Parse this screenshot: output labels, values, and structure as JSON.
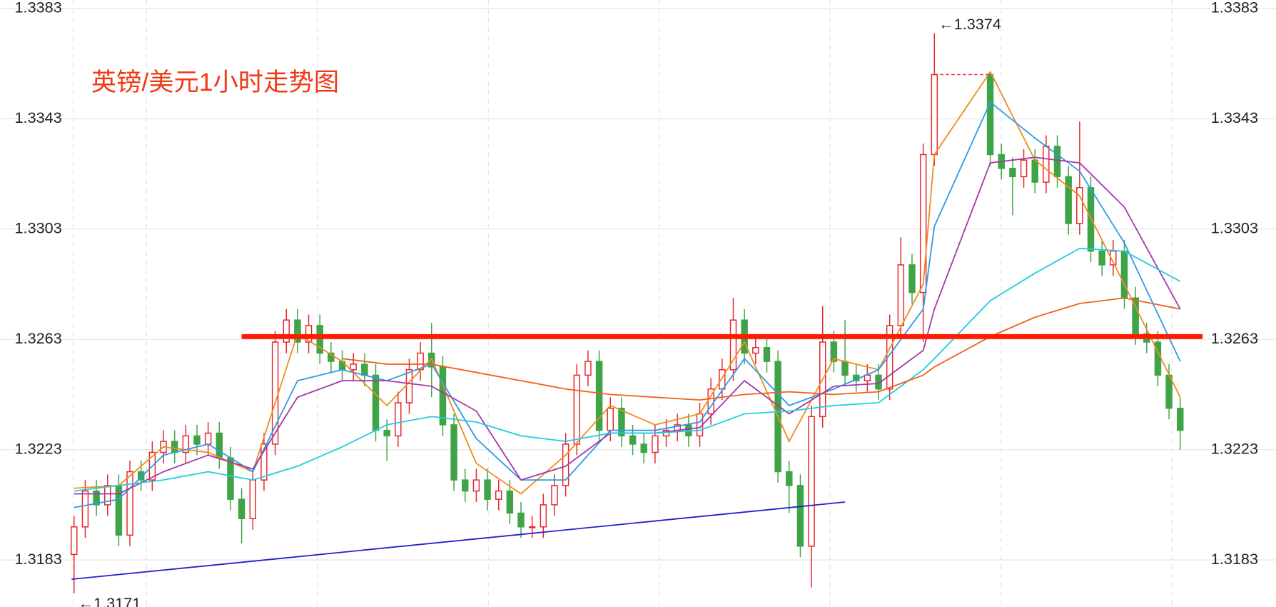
{
  "chart_data": {
    "type": "candlestick",
    "title": "英镑/美元1小时走势图",
    "up_color": "#e8262b",
    "down_color": "#3fa447",
    "ylim": [
      1.3166,
      1.3386
    ],
    "yticks": [
      1.3183,
      1.3223,
      1.3263,
      1.3303,
      1.3343,
      1.3383
    ],
    "grid": true,
    "open": [
      1.3185,
      1.3195,
      1.3208,
      1.3203,
      1.321,
      1.3192,
      1.3215,
      1.3212,
      1.3222,
      1.3226,
      1.3222,
      1.3228,
      1.3225,
      1.3229,
      1.322,
      1.3205,
      1.3198,
      1.3212,
      1.3225,
      1.3262,
      1.327,
      1.3262,
      1.3268,
      1.3258,
      1.3255,
      1.3252,
      1.3254,
      1.325,
      1.323,
      1.3228,
      1.324,
      1.3252,
      1.3258,
      1.3253,
      1.3232,
      1.3212,
      1.3208,
      1.3212,
      1.3205,
      1.3208,
      1.32,
      1.3195,
      1.3195,
      1.3203,
      1.321,
      1.3225,
      1.325,
      1.3255,
      1.323,
      1.3238,
      1.3228,
      1.3225,
      1.3222,
      1.3228,
      1.323,
      1.3232,
      1.3228,
      1.3236,
      1.3245,
      1.3252,
      1.327,
      1.3258,
      1.326,
      1.3255,
      1.3215,
      1.321,
      1.3188,
      1.3235,
      1.3262,
      1.3255,
      1.325,
      1.3248,
      1.325,
      1.3245,
      1.3268,
      1.329,
      1.328,
      1.333,
      null,
      null,
      null,
      null,
      1.3359,
      1.333,
      1.3325,
      1.3322,
      1.3328,
      1.332,
      1.3333,
      1.3322,
      1.3305,
      1.3318,
      1.3295,
      1.329,
      1.3295,
      1.3278,
      1.3265,
      1.3262,
      1.325,
      1.3238
    ],
    "high": [
      1.3199,
      1.3212,
      1.3212,
      1.3214,
      1.3214,
      1.3219,
      1.3219,
      1.3226,
      1.323,
      1.323,
      1.3232,
      1.3232,
      1.3233,
      1.3233,
      1.3224,
      1.3209,
      1.3216,
      1.3229,
      1.3266,
      1.3274,
      1.3274,
      1.3272,
      1.3272,
      1.3262,
      1.3259,
      1.3258,
      1.3258,
      1.3254,
      1.3234,
      1.3244,
      1.3256,
      1.3262,
      1.3269,
      1.3257,
      1.3236,
      1.3216,
      1.3216,
      1.3216,
      1.3212,
      1.3212,
      1.3204,
      1.3199,
      1.3207,
      1.3214,
      1.3229,
      1.3254,
      1.3259,
      1.3259,
      1.3242,
      1.3242,
      1.3232,
      1.3229,
      1.3232,
      1.3234,
      1.3236,
      1.3236,
      1.324,
      1.3249,
      1.3256,
      1.3278,
      1.3274,
      1.3264,
      1.3264,
      1.3259,
      1.3219,
      1.3214,
      1.3239,
      1.3275,
      1.3266,
      1.327,
      1.3254,
      1.3254,
      1.3254,
      1.3272,
      1.33,
      1.3294,
      1.3334,
      1.3374,
      null,
      null,
      null,
      null,
      1.336,
      1.3334,
      1.3329,
      1.3332,
      1.3332,
      1.3337,
      1.3337,
      1.3326,
      1.3342,
      1.3322,
      1.3299,
      1.3299,
      1.3299,
      1.3282,
      1.3269,
      1.3266,
      1.3254,
      1.3242
    ],
    "low": [
      1.3171,
      1.3191,
      1.3199,
      1.3199,
      1.3188,
      1.3188,
      1.3208,
      1.3208,
      1.3218,
      1.3218,
      1.3218,
      1.3221,
      1.3221,
      1.3216,
      1.3201,
      1.3189,
      1.3194,
      1.3208,
      1.3221,
      1.3258,
      1.3258,
      1.3258,
      1.3254,
      1.3251,
      1.3248,
      1.3248,
      1.3246,
      1.3226,
      1.3219,
      1.3224,
      1.3236,
      1.3248,
      1.3242,
      1.3228,
      1.3208,
      1.3204,
      1.3204,
      1.3201,
      1.3201,
      1.3196,
      1.3191,
      1.3191,
      1.3191,
      1.3199,
      1.3206,
      1.3221,
      1.3246,
      1.3226,
      1.3226,
      1.3224,
      1.3221,
      1.3218,
      1.3218,
      1.3224,
      1.3226,
      1.3224,
      1.3224,
      1.3232,
      1.3241,
      1.3248,
      1.3254,
      1.3254,
      1.3251,
      1.3211,
      1.32,
      1.3184,
      1.3173,
      1.3231,
      1.3251,
      1.3246,
      1.3244,
      1.3244,
      1.3241,
      1.3241,
      1.3264,
      1.3276,
      1.3262,
      1.3326,
      null,
      null,
      null,
      null,
      1.3326,
      1.3321,
      1.3308,
      1.3318,
      1.3316,
      1.3316,
      1.3318,
      1.3301,
      1.3301,
      1.3291,
      1.3286,
      1.3286,
      1.3274,
      1.3261,
      1.3258,
      1.3246,
      1.3234,
      1.3223
    ],
    "close": [
      1.3195,
      1.3208,
      1.3203,
      1.321,
      1.3192,
      1.3215,
      1.3212,
      1.3222,
      1.3226,
      1.3222,
      1.3228,
      1.3225,
      1.3229,
      1.322,
      1.3205,
      1.3198,
      1.3212,
      1.3225,
      1.3262,
      1.327,
      1.3262,
      1.3268,
      1.3258,
      1.3255,
      1.3252,
      1.3254,
      1.325,
      1.323,
      1.3228,
      1.324,
      1.3252,
      1.3258,
      1.3253,
      1.3232,
      1.3212,
      1.3208,
      1.3212,
      1.3205,
      1.3208,
      1.32,
      1.3195,
      1.3195,
      1.3203,
      1.321,
      1.3225,
      1.325,
      1.3255,
      1.323,
      1.3238,
      1.3228,
      1.3225,
      1.3222,
      1.3228,
      1.323,
      1.3232,
      1.3228,
      1.3236,
      1.3245,
      1.3252,
      1.327,
      1.3258,
      1.326,
      1.3255,
      1.3215,
      1.321,
      1.3188,
      1.3235,
      1.3262,
      1.3255,
      1.325,
      1.3248,
      1.325,
      1.3245,
      1.3268,
      1.329,
      1.328,
      1.333,
      1.3359,
      null,
      null,
      null,
      null,
      1.333,
      1.3325,
      1.3322,
      1.3328,
      1.332,
      1.3333,
      1.3322,
      1.3305,
      1.3318,
      1.3295,
      1.329,
      1.3295,
      1.3278,
      1.3265,
      1.3262,
      1.325,
      1.3238,
      1.323
    ],
    "ma_x": [
      0,
      4,
      8,
      12,
      16,
      20,
      24,
      28,
      32,
      36,
      40,
      44,
      48,
      52,
      56,
      60,
      64,
      68,
      72,
      76,
      77,
      82,
      86,
      90,
      94,
      99
    ],
    "ma_series": [
      {
        "color": "#f08c1e",
        "values": [
          1.3209,
          1.321,
          1.3224,
          1.3222,
          1.3215,
          1.3265,
          1.3255,
          1.3239,
          1.3256,
          1.3218,
          1.3207,
          1.3221,
          1.3239,
          1.3232,
          1.3236,
          1.3262,
          1.3226,
          1.3256,
          1.3252,
          1.3283,
          1.333,
          1.336,
          1.3328,
          1.3315,
          1.3283,
          1.3242
        ]
      },
      {
        "color": "#2f9be8",
        "values": [
          1.3202,
          1.3205,
          1.3221,
          1.3225,
          1.3215,
          1.3248,
          1.3252,
          1.3248,
          1.3254,
          1.3227,
          1.3212,
          1.3212,
          1.323,
          1.323,
          1.3233,
          1.3256,
          1.3239,
          1.3245,
          1.3252,
          1.3274,
          1.3304,
          1.3349,
          1.3336,
          1.3324,
          1.3298,
          1.3255
        ]
      },
      {
        "color": "#a43aa8",
        "values": [
          1.3207,
          1.3207,
          1.3215,
          1.3221,
          1.3216,
          1.3242,
          1.3248,
          1.3248,
          1.3246,
          1.3237,
          1.3212,
          1.3217,
          1.3229,
          1.3229,
          1.3231,
          1.3248,
          1.3236,
          1.3246,
          1.3247,
          1.3259,
          1.3274,
          1.3327,
          1.3329,
          1.3327,
          1.3311,
          1.3274
        ]
      },
      {
        "color": "#22cde0",
        "values": [
          1.3208,
          1.321,
          1.3212,
          1.3215,
          1.3212,
          1.3217,
          1.3224,
          1.3232,
          1.3235,
          1.3233,
          1.3228,
          1.3226,
          1.3229,
          1.3229,
          1.323,
          1.3236,
          1.3237,
          1.3239,
          1.324,
          1.3252,
          1.3256,
          1.3277,
          1.3287,
          1.3296,
          1.3295,
          1.3284
        ]
      },
      {
        "color": "#f0601a",
        "values": [
          null,
          null,
          null,
          null,
          null,
          null,
          1.3256,
          1.3254,
          1.3254,
          1.3251,
          1.3248,
          1.3245,
          1.3243,
          1.3242,
          1.3241,
          1.3243,
          1.3244,
          1.3243,
          1.3244,
          1.325,
          1.3253,
          1.3264,
          1.3271,
          1.3276,
          1.3278,
          1.3274
        ]
      }
    ],
    "lines": [
      {
        "color": "#ff1a00",
        "dash": false,
        "x": [
          15,
          101
        ],
        "values": [
          1.3264,
          1.3264
        ]
      },
      {
        "color": "#2222cc",
        "dash": false,
        "x": [
          0,
          69
        ],
        "values": [
          1.3176,
          1.3204
        ]
      },
      {
        "color": "#e8262b",
        "dash": true,
        "x": [
          77,
          82
        ],
        "values": [
          1.3359,
          1.3359
        ]
      }
    ],
    "annotations": [
      {
        "text": "←1.3374",
        "index": 77,
        "at": "high"
      },
      {
        "text": "←1.3171",
        "index": 0,
        "at": "low"
      }
    ]
  }
}
